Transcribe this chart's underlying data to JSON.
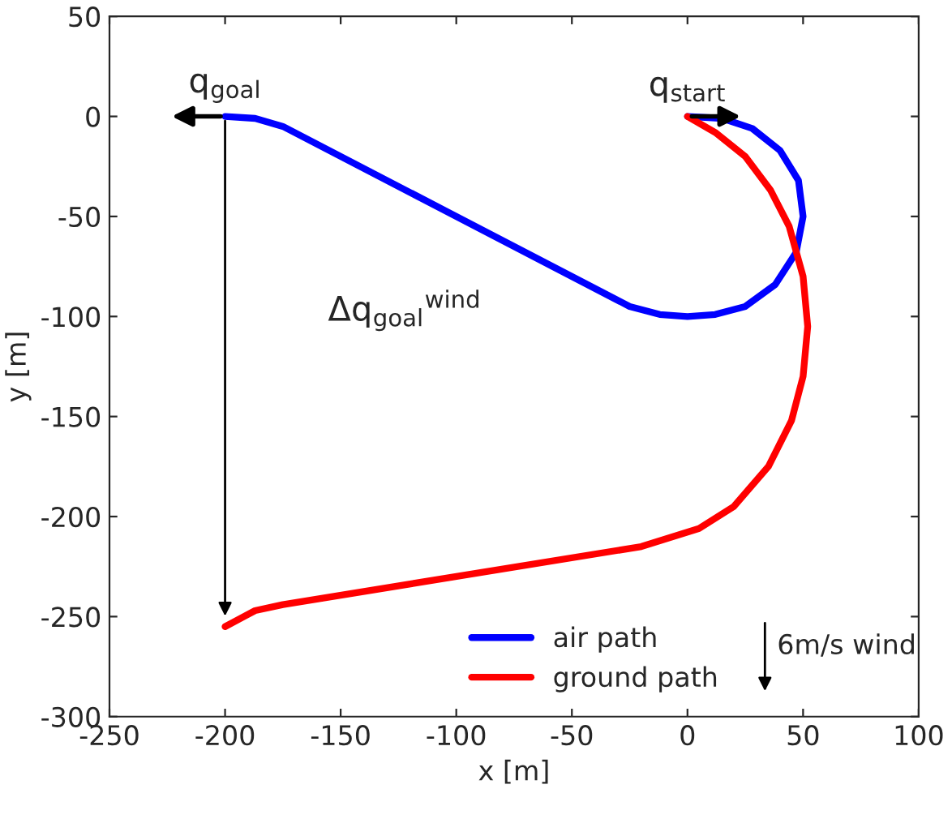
{
  "chart_data": {
    "type": "line",
    "xlabel": "x [m]",
    "ylabel": "y [m]",
    "xlim": [
      -250,
      100
    ],
    "xticks": [
      -250,
      -200,
      -150,
      -100,
      -50,
      0,
      50,
      100
    ],
    "ylim": [
      -300,
      50
    ],
    "yticks": [
      -300,
      -250,
      -200,
      -150,
      -100,
      -50,
      0,
      50
    ],
    "grid": false,
    "legend": "bottom",
    "line_style": "solid",
    "marker": "none",
    "series": [
      {
        "name": "air path",
        "color": "#0000ff",
        "x": [
          0,
          15,
          28,
          40,
          48,
          50,
          47,
          38,
          25,
          12,
          0,
          -12,
          -25,
          -175,
          -187,
          -200
        ],
        "values": [
          0,
          -1,
          -6,
          -17,
          -32,
          -50,
          -68,
          -84,
          -95,
          -99,
          -100,
          -99,
          -95,
          -5,
          -1,
          0
        ]
      },
      {
        "name": "ground path",
        "color": "#ff0000",
        "x": [
          0,
          12,
          25,
          36,
          44,
          50,
          52,
          50,
          45,
          35,
          20,
          5,
          -20,
          -175,
          -187,
          -200
        ],
        "values": [
          0,
          -8,
          -20,
          -37,
          -55,
          -80,
          -105,
          -130,
          -152,
          -175,
          -195,
          -206,
          -215,
          -244,
          -247,
          -255
        ]
      }
    ],
    "annotations": [
      {
        "text": "q$_{goal}$",
        "x": -200,
        "y": 0
      },
      {
        "text": "q$_{start}$",
        "x": 0,
        "y": 0
      },
      "Δq$_{goal}$$^{wind}$",
      "6m/s wind"
    ]
  }
}
